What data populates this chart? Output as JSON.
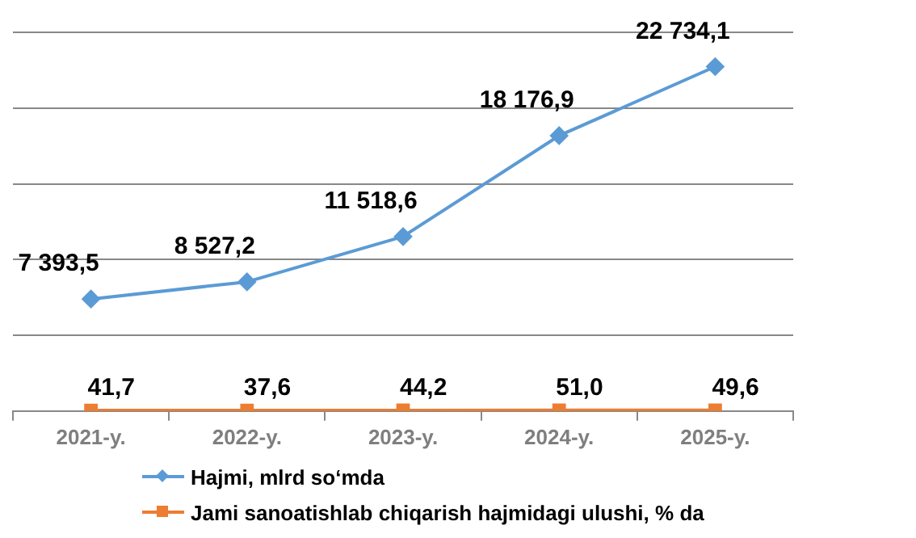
{
  "chart_data": {
    "type": "line",
    "categories": [
      "2021-y.",
      "2022-y.",
      "2023-y.",
      "2024-y.",
      "2025-y."
    ],
    "series": [
      {
        "name": "Hajmi, mlrd so‘mda",
        "color": "#5b9bd5",
        "marker": "diamond",
        "values": [
          7393.5,
          8527.2,
          11518.6,
          18176.9,
          22734.1
        ],
        "value_labels": [
          "7 393,5",
          "8 527,2",
          "11 518,6",
          "18 176,9",
          "22 734,1"
        ]
      },
      {
        "name": "Jami sanoatishlab chiqarish  hajmidagi ulushi, % da",
        "color": "#ed7d31",
        "marker": "square",
        "values": [
          41.7,
          37.6,
          44.2,
          51.0,
          49.6
        ],
        "value_labels": [
          "41,7",
          "37,6",
          "44,2",
          "51,0",
          "49,6"
        ]
      }
    ],
    "ylim": [
      0,
      25000
    ],
    "yticks": [
      {
        "value": 0,
        "label": null
      },
      {
        "value": 5000,
        "label": null
      },
      {
        "value": 10000,
        "label": null
      },
      {
        "value": 15000,
        "label": null
      },
      {
        "value": 20000,
        "label": null
      },
      {
        "value": 25000,
        "label": null
      }
    ],
    "tick_labels": "x",
    "grid": "y",
    "legend": "bottom left"
  }
}
